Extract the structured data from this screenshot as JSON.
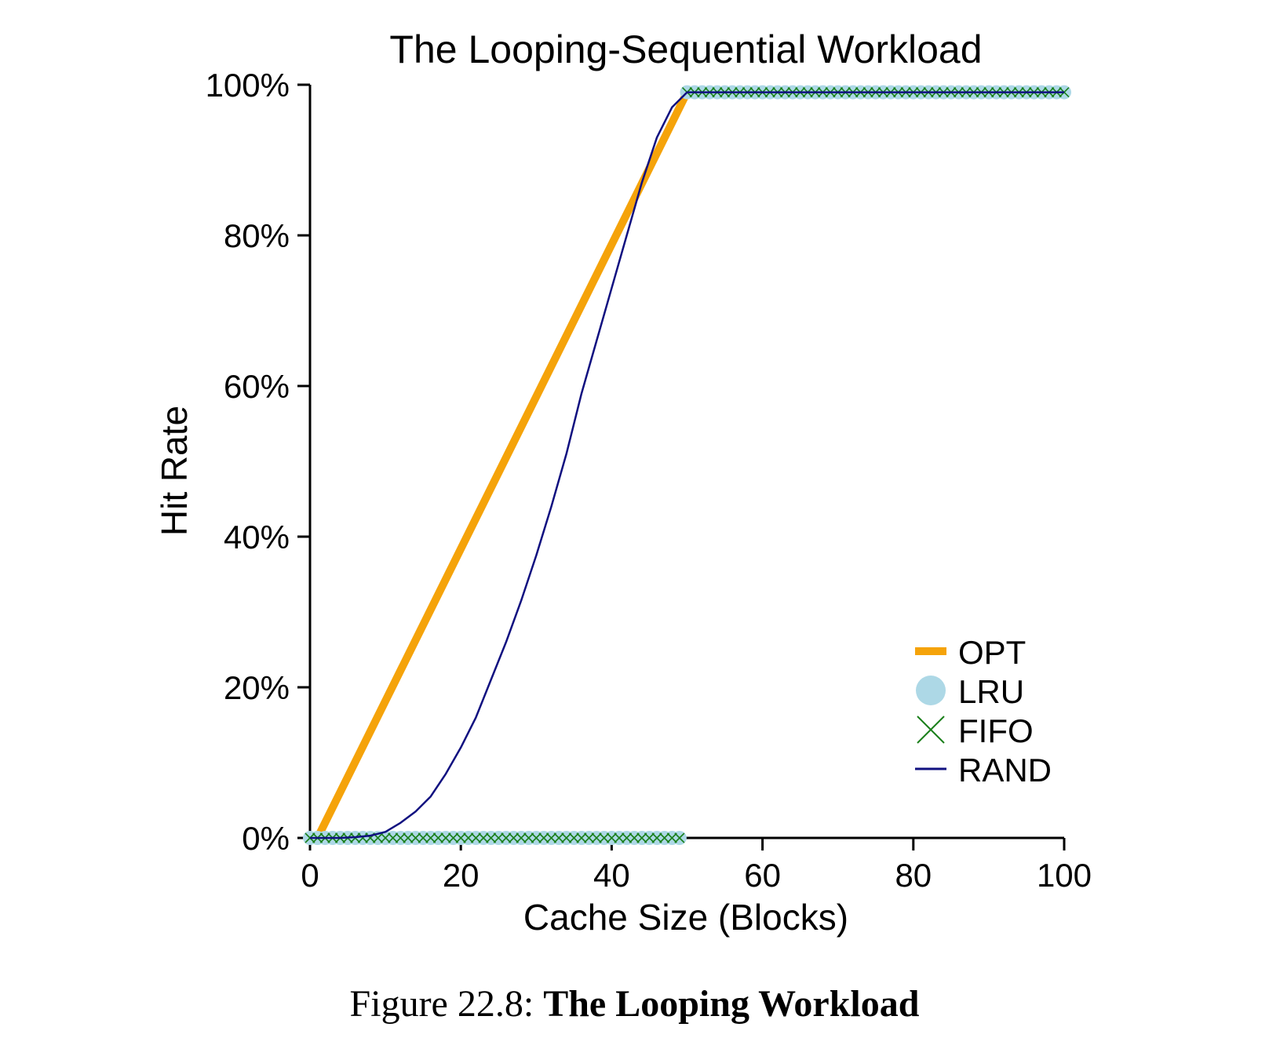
{
  "chart_data": {
    "type": "line",
    "title": "The Looping-Sequential Workload",
    "xlabel": "Cache Size (Blocks)",
    "ylabel": "Hit Rate",
    "xlim": [
      0,
      100
    ],
    "ylim": [
      0,
      100
    ],
    "xticks": [
      "0",
      "20",
      "40",
      "60",
      "80",
      "100"
    ],
    "yticks": [
      "0%",
      "20%",
      "40%",
      "60%",
      "80%",
      "100%"
    ],
    "grid": false,
    "legend_position": "bottom-right",
    "series": [
      {
        "name": "OPT",
        "marker": "thick-line",
        "color": "#f5a30a",
        "x": [
          1,
          50,
          100
        ],
        "y": [
          0,
          99,
          99
        ]
      },
      {
        "name": "LRU",
        "marker": "circle",
        "color": "#add8e6",
        "x": [
          0,
          49,
          50,
          100
        ],
        "y": [
          0,
          0,
          99,
          99
        ]
      },
      {
        "name": "FIFO",
        "marker": "x",
        "color": "#1a7f1a",
        "x": [
          0,
          49,
          50,
          100
        ],
        "y": [
          0,
          0,
          99,
          99
        ]
      },
      {
        "name": "RAND",
        "marker": "line",
        "color": "#101080",
        "x": [
          0,
          2,
          4,
          6,
          8,
          10,
          12,
          14,
          16,
          18,
          20,
          22,
          24,
          26,
          28,
          30,
          32,
          34,
          36,
          38,
          40,
          42,
          44,
          46,
          48,
          50,
          60,
          70,
          80,
          90,
          100
        ],
        "y": [
          0,
          0,
          0,
          0.1,
          0.3,
          0.8,
          2,
          3.5,
          5.5,
          8.5,
          12,
          16,
          21,
          26,
          31.5,
          37.5,
          44,
          51,
          59,
          66,
          73,
          80,
          87,
          93,
          97,
          99,
          99,
          99,
          99,
          99,
          99
        ]
      }
    ]
  },
  "caption": {
    "prefix": "Figure 22.8: ",
    "bold": "The Looping Workload"
  }
}
